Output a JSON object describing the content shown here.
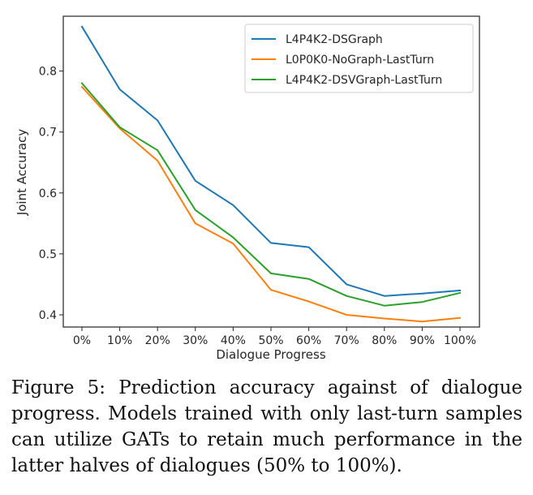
{
  "chart_data": {
    "type": "line",
    "title": "",
    "xlabel": "Dialogue Progress",
    "ylabel": "Joint Accuracy",
    "categories": [
      "0%",
      "10%",
      "20%",
      "30%",
      "40%",
      "50%",
      "60%",
      "70%",
      "80%",
      "90%",
      "100%"
    ],
    "ylim": [
      0.38,
      0.89
    ],
    "yticks": [
      0.4,
      0.5,
      0.6,
      0.7,
      0.8
    ],
    "ytick_labels": [
      "0.4",
      "0.5",
      "0.6",
      "0.7",
      "0.8"
    ],
    "grid": false,
    "legend_position": "top-right",
    "series": [
      {
        "name": "L4P4K2-DSGraph",
        "color": "#1f77b4",
        "values": [
          0.873,
          0.77,
          0.719,
          0.62,
          0.58,
          0.518,
          0.511,
          0.45,
          0.431,
          0.435,
          0.44
        ]
      },
      {
        "name": "L0P0K0-NoGraph-LastTurn",
        "color": "#ff7f0e",
        "values": [
          0.774,
          0.706,
          0.653,
          0.55,
          0.517,
          0.441,
          0.422,
          0.4,
          0.394,
          0.389,
          0.395
        ]
      },
      {
        "name": "L4P4K2-DSVGraph-LastTurn",
        "color": "#2ca02c",
        "values": [
          0.78,
          0.708,
          0.67,
          0.572,
          0.527,
          0.468,
          0.459,
          0.431,
          0.415,
          0.421,
          0.436
        ]
      }
    ]
  },
  "caption": {
    "text": "Figure 5:  Prediction accuracy against of dialogue progress.  Models trained with only last-turn samples can utilize GATs to retain much performance in the latter halves of dialogues (50% to 100%)."
  }
}
